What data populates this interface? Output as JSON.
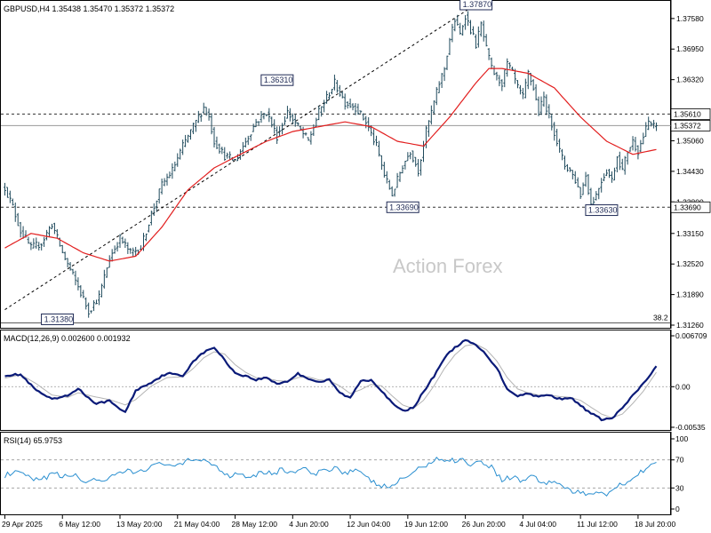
{
  "chart_data": [
    {
      "type": "line",
      "panel": "price",
      "header": "GBPUSD,H4  1.35438 1.35470 1.35372 1.35372",
      "watermark": "Action Forex",
      "ylim": [
        1.3126,
        1.3787
      ],
      "y_ticks": [
        "1.37580",
        "1.36950",
        "1.36320",
        "1.35060",
        "1.34430",
        "1.33800",
        "1.33150",
        "1.32520",
        "1.31890",
        "1.31260"
      ],
      "y_tick_values": [
        1.3758,
        1.3695,
        1.3632,
        1.3506,
        1.3443,
        1.338,
        1.3315,
        1.3252,
        1.3189,
        1.3126
      ],
      "current_price": {
        "label": "1.35372",
        "value": 1.35372
      },
      "levels": [
        {
          "label": "1.35610",
          "value": 1.3561,
          "style": "dashed"
        },
        {
          "label": "1.33690",
          "value": 1.3369,
          "style": "dashed"
        }
      ],
      "fib_label": "38.2",
      "fib_value": 1.3138,
      "annotations": [
        {
          "label": "1.31380",
          "x": 16,
          "value": 1.3138
        },
        {
          "label": "1.36310",
          "x": 100,
          "value": 1.3631
        },
        {
          "label": "1.33690",
          "x": 148,
          "value": 1.3369
        },
        {
          "label": "1.37870",
          "x": 176,
          "value": 1.3787
        },
        {
          "label": "1.33630",
          "x": 224,
          "value": 1.3363
        }
      ],
      "trendline": [
        [
          0,
          1.3136
        ],
        [
          180,
          1.3787
        ]
      ],
      "x_labels": [
        "29 Apr 2025",
        "6 May 12:00",
        "13 May 20:00",
        "21 May 04:00",
        "28 May 12:00",
        "4 Jun 20:00",
        "12 Jun 04:00",
        "19 Jun 12:00",
        "26 Jun 20:00",
        "4 Jul 04:00",
        "11 Jul 12:00",
        "18 Jul 20:00"
      ],
      "x_label_index": [
        0,
        22,
        44,
        66,
        88,
        110,
        132,
        154,
        176,
        198,
        220,
        242
      ],
      "bar_count": 250,
      "close_anchors": [
        [
          0,
          1.341
        ],
        [
          3,
          1.337
        ],
        [
          6,
          1.332
        ],
        [
          10,
          1.3285
        ],
        [
          14,
          1.3295
        ],
        [
          18,
          1.3335
        ],
        [
          22,
          1.3275
        ],
        [
          28,
          1.3205
        ],
        [
          32,
          1.3155
        ],
        [
          36,
          1.3185
        ],
        [
          40,
          1.3265
        ],
        [
          44,
          1.3305
        ],
        [
          48,
          1.3275
        ],
        [
          52,
          1.3285
        ],
        [
          56,
          1.3355
        ],
        [
          60,
          1.3415
        ],
        [
          64,
          1.3445
        ],
        [
          68,
          1.3495
        ],
        [
          72,
          1.3535
        ],
        [
          76,
          1.3575
        ],
        [
          78,
          1.3555
        ],
        [
          80,
          1.3505
        ],
        [
          84,
          1.3475
        ],
        [
          88,
          1.3465
        ],
        [
          92,
          1.3505
        ],
        [
          96,
          1.3545
        ],
        [
          100,
          1.3565
        ],
        [
          104,
          1.3515
        ],
        [
          108,
          1.3565
        ],
        [
          112,
          1.3535
        ],
        [
          116,
          1.3505
        ],
        [
          120,
          1.3565
        ],
        [
          126,
          1.3625
        ],
        [
          130,
          1.3585
        ],
        [
          134,
          1.3575
        ],
        [
          138,
          1.3545
        ],
        [
          142,
          1.3495
        ],
        [
          145,
          1.3435
        ],
        [
          148,
          1.3395
        ],
        [
          152,
          1.3455
        ],
        [
          155,
          1.3485
        ],
        [
          158,
          1.3445
        ],
        [
          161,
          1.3525
        ],
        [
          164,
          1.3585
        ],
        [
          166,
          1.3625
        ],
        [
          168,
          1.3655
        ],
        [
          170,
          1.3715
        ],
        [
          172,
          1.3755
        ],
        [
          174,
          1.3725
        ],
        [
          176,
          1.3765
        ],
        [
          178,
          1.3735
        ],
        [
          180,
          1.3705
        ],
        [
          182,
          1.3745
        ],
        [
          184,
          1.3695
        ],
        [
          186,
          1.3655
        ],
        [
          188,
          1.3635
        ],
        [
          190,
          1.3625
        ],
        [
          192,
          1.3665
        ],
        [
          194,
          1.3645
        ],
        [
          196,
          1.3615
        ],
        [
          198,
          1.3595
        ],
        [
          200,
          1.3645
        ],
        [
          202,
          1.3615
        ],
        [
          204,
          1.3565
        ],
        [
          206,
          1.3595
        ],
        [
          208,
          1.3555
        ],
        [
          210,
          1.3525
        ],
        [
          212,
          1.3485
        ],
        [
          214,
          1.3455
        ],
        [
          216,
          1.3445
        ],
        [
          218,
          1.3425
        ],
        [
          220,
          1.3395
        ],
        [
          222,
          1.3435
        ],
        [
          224,
          1.3375
        ],
        [
          226,
          1.3395
        ],
        [
          228,
          1.3425
        ],
        [
          230,
          1.3445
        ],
        [
          232,
          1.3425
        ],
        [
          234,
          1.3475
        ],
        [
          236,
          1.3445
        ],
        [
          238,
          1.3485
        ],
        [
          240,
          1.3505
        ],
        [
          242,
          1.3485
        ],
        [
          244,
          1.3515
        ],
        [
          246,
          1.3545
        ],
        [
          248,
          1.3535
        ],
        [
          249,
          1.35372
        ]
      ],
      "ma_anchors": [
        [
          0,
          1.3285
        ],
        [
          10,
          1.3315
        ],
        [
          20,
          1.3305
        ],
        [
          30,
          1.3275
        ],
        [
          40,
          1.3258
        ],
        [
          50,
          1.3268
        ],
        [
          60,
          1.3328
        ],
        [
          70,
          1.3405
        ],
        [
          80,
          1.345
        ],
        [
          90,
          1.3478
        ],
        [
          100,
          1.3505
        ],
        [
          110,
          1.3525
        ],
        [
          120,
          1.3535
        ],
        [
          130,
          1.3545
        ],
        [
          140,
          1.3535
        ],
        [
          150,
          1.3505
        ],
        [
          160,
          1.3495
        ],
        [
          170,
          1.3555
        ],
        [
          180,
          1.3625
        ],
        [
          185,
          1.3655
        ],
        [
          190,
          1.3655
        ],
        [
          200,
          1.3645
        ],
        [
          210,
          1.3615
        ],
        [
          220,
          1.3555
        ],
        [
          230,
          1.3505
        ],
        [
          240,
          1.3478
        ],
        [
          249,
          1.3488
        ]
      ]
    },
    {
      "type": "line",
      "panel": "macd",
      "header": "MACD(12,26,9) 0.002600 0.001932",
      "ylim": [
        -0.00535,
        0.006709
      ],
      "y_ticks": [
        "0.006709",
        "0.00",
        "-0.00535"
      ],
      "y_tick_values": [
        0.006709,
        0.0,
        -0.00535
      ],
      "macd_anchors": [
        [
          0,
          0.0015
        ],
        [
          6,
          0.0016
        ],
        [
          12,
          -0.0005
        ],
        [
          18,
          -0.0017
        ],
        [
          24,
          -0.0012
        ],
        [
          28,
          -0.0002
        ],
        [
          34,
          -0.0022
        ],
        [
          40,
          -0.0019
        ],
        [
          46,
          -0.0034
        ],
        [
          50,
          -0.0005
        ],
        [
          56,
          0.0006
        ],
        [
          62,
          0.0018
        ],
        [
          68,
          0.0014
        ],
        [
          72,
          0.0034
        ],
        [
          76,
          0.0045
        ],
        [
          80,
          0.0052
        ],
        [
          84,
          0.0035
        ],
        [
          88,
          0.0018
        ],
        [
          92,
          0.0014
        ],
        [
          96,
          0.0009
        ],
        [
          100,
          0.0012
        ],
        [
          104,
          0.0004
        ],
        [
          108,
          0.0007
        ],
        [
          112,
          0.0017
        ],
        [
          116,
          0.0011
        ],
        [
          120,
          0.0006
        ],
        [
          124,
          0.0009
        ],
        [
          128,
          -0.0008
        ],
        [
          132,
          -0.0015
        ],
        [
          136,
          0.0008
        ],
        [
          140,
          0.0009
        ],
        [
          144,
          -0.0005
        ],
        [
          148,
          -0.0022
        ],
        [
          152,
          -0.0032
        ],
        [
          156,
          -0.0028
        ],
        [
          160,
          -0.0007
        ],
        [
          164,
          0.0014
        ],
        [
          168,
          0.0038
        ],
        [
          172,
          0.0052
        ],
        [
          176,
          0.0061
        ],
        [
          180,
          0.0055
        ],
        [
          184,
          0.0042
        ],
        [
          188,
          0.0025
        ],
        [
          192,
          -0.0003
        ],
        [
          196,
          -0.0012
        ],
        [
          200,
          -0.0009
        ],
        [
          204,
          -0.0013
        ],
        [
          208,
          -0.0011
        ],
        [
          212,
          -0.0016
        ],
        [
          216,
          -0.0014
        ],
        [
          220,
          -0.0025
        ],
        [
          224,
          -0.0035
        ],
        [
          228,
          -0.0043
        ],
        [
          232,
          -0.0042
        ],
        [
          236,
          -0.0028
        ],
        [
          240,
          -0.0012
        ],
        [
          244,
          0.0004
        ],
        [
          249,
          0.0026
        ]
      ],
      "signal_anchors": [
        [
          0,
          0.0011
        ],
        [
          6,
          0.0016
        ],
        [
          12,
          0.0004
        ],
        [
          18,
          -0.0011
        ],
        [
          24,
          -0.0014
        ],
        [
          28,
          -0.0008
        ],
        [
          34,
          -0.0013
        ],
        [
          40,
          -0.0017
        ],
        [
          46,
          -0.0024
        ],
        [
          50,
          -0.0017
        ],
        [
          56,
          0.0001
        ],
        [
          62,
          0.0012
        ],
        [
          68,
          0.0013
        ],
        [
          72,
          0.0024
        ],
        [
          76,
          0.0038
        ],
        [
          80,
          0.0046
        ],
        [
          84,
          0.0043
        ],
        [
          88,
          0.0029
        ],
        [
          92,
          0.0019
        ],
        [
          96,
          0.0012
        ],
        [
          100,
          0.0011
        ],
        [
          104,
          0.0008
        ],
        [
          108,
          0.0007
        ],
        [
          112,
          0.0012
        ],
        [
          116,
          0.0013
        ],
        [
          120,
          0.0009
        ],
        [
          124,
          0.0008
        ],
        [
          128,
          0.0001
        ],
        [
          132,
          -0.0009
        ],
        [
          136,
          -0.0004
        ],
        [
          140,
          0.0003
        ],
        [
          144,
          0.0001
        ],
        [
          148,
          -0.0012
        ],
        [
          152,
          -0.0024
        ],
        [
          156,
          -0.0029
        ],
        [
          160,
          -0.0018
        ],
        [
          164,
          0.0001
        ],
        [
          168,
          0.0024
        ],
        [
          172,
          0.0042
        ],
        [
          176,
          0.0054
        ],
        [
          180,
          0.0056
        ],
        [
          184,
          0.0049
        ],
        [
          188,
          0.0034
        ],
        [
          192,
          0.0012
        ],
        [
          196,
          -0.0003
        ],
        [
          200,
          -0.0008
        ],
        [
          204,
          -0.0011
        ],
        [
          208,
          -0.0011
        ],
        [
          212,
          -0.0013
        ],
        [
          216,
          -0.0014
        ],
        [
          220,
          -0.0018
        ],
        [
          224,
          -0.0027
        ],
        [
          228,
          -0.0036
        ],
        [
          232,
          -0.0041
        ],
        [
          236,
          -0.0036
        ],
        [
          240,
          -0.0022
        ],
        [
          244,
          -0.0006
        ],
        [
          249,
          0.0019
        ]
      ]
    },
    {
      "type": "line",
      "panel": "rsi",
      "header": "RSI(14) 65.9753",
      "ylim": [
        0,
        100
      ],
      "y_ticks": [
        "100",
        "70",
        "30",
        "0"
      ],
      "y_tick_values": [
        100,
        70,
        30,
        0
      ],
      "levels": [
        70,
        30
      ],
      "rsi_anchors": [
        [
          0,
          48
        ],
        [
          6,
          52
        ],
        [
          10,
          42
        ],
        [
          14,
          40
        ],
        [
          18,
          52
        ],
        [
          22,
          45
        ],
        [
          26,
          50
        ],
        [
          30,
          38
        ],
        [
          34,
          44
        ],
        [
          38,
          36
        ],
        [
          42,
          48
        ],
        [
          46,
          54
        ],
        [
          50,
          52
        ],
        [
          54,
          58
        ],
        [
          58,
          62
        ],
        [
          62,
          66
        ],
        [
          66,
          60
        ],
        [
          70,
          68
        ],
        [
          74,
          72
        ],
        [
          78,
          68
        ],
        [
          82,
          56
        ],
        [
          86,
          48
        ],
        [
          90,
          52
        ],
        [
          94,
          45
        ],
        [
          98,
          54
        ],
        [
          102,
          50
        ],
        [
          106,
          56
        ],
        [
          110,
          52
        ],
        [
          114,
          58
        ],
        [
          118,
          48
        ],
        [
          122,
          55
        ],
        [
          126,
          60
        ],
        [
          130,
          52
        ],
        [
          134,
          56
        ],
        [
          138,
          44
        ],
        [
          142,
          36
        ],
        [
          146,
          30
        ],
        [
          150,
          38
        ],
        [
          154,
          48
        ],
        [
          158,
          56
        ],
        [
          162,
          66
        ],
        [
          166,
          72
        ],
        [
          170,
          68
        ],
        [
          174,
          72
        ],
        [
          178,
          64
        ],
        [
          182,
          68
        ],
        [
          186,
          60
        ],
        [
          190,
          42
        ],
        [
          194,
          46
        ],
        [
          198,
          40
        ],
        [
          202,
          48
        ],
        [
          206,
          36
        ],
        [
          210,
          40
        ],
        [
          214,
          30
        ],
        [
          218,
          24
        ],
        [
          222,
          20
        ],
        [
          226,
          26
        ],
        [
          230,
          22
        ],
        [
          234,
          32
        ],
        [
          238,
          40
        ],
        [
          242,
          50
        ],
        [
          246,
          62
        ],
        [
          249,
          66
        ]
      ]
    }
  ]
}
